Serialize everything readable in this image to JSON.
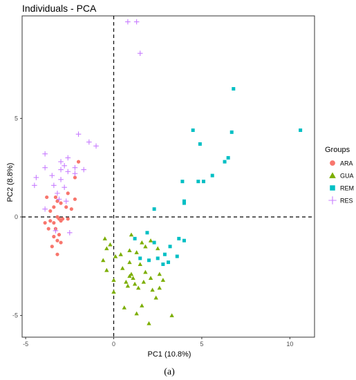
{
  "chart_data": {
    "type": "scatter",
    "title": "Individuals - PCA",
    "xlabel": "PC1 (10.8%)",
    "ylabel": "PC2 (8.8%)",
    "xlim": [
      -5.2,
      11.4
    ],
    "ylim": [
      -6.1,
      10.2
    ],
    "xticks": [
      -5,
      0,
      5,
      10
    ],
    "yticks": [
      -5,
      0,
      5
    ],
    "grid": false,
    "reference_lines": {
      "x": 0,
      "y": 0,
      "style": "dashed"
    },
    "legend": {
      "title": "Groups",
      "position": "right"
    },
    "series": [
      {
        "name": "ARA",
        "color": "#F8766D",
        "shape": "circle",
        "points": [
          [
            -3.1,
            -0.1
          ],
          [
            -3.0,
            -0.2
          ],
          [
            -3.2,
            0.0
          ],
          [
            -2.9,
            -0.1
          ],
          [
            -3.4,
            -0.3
          ],
          [
            -3.6,
            -0.2
          ],
          [
            -3.3,
            -0.6
          ],
          [
            -3.1,
            -0.9
          ],
          [
            -3.4,
            -1.0
          ],
          [
            -3.2,
            -1.2
          ],
          [
            -3.5,
            -1.5
          ],
          [
            -3.2,
            -1.9
          ],
          [
            -3.0,
            -1.3
          ],
          [
            -3.7,
            -0.6
          ],
          [
            -3.9,
            -0.3
          ],
          [
            -3.6,
            0.3
          ],
          [
            -3.4,
            0.5
          ],
          [
            -3.2,
            0.8
          ],
          [
            -3.3,
            1.0
          ],
          [
            -3.0,
            0.7
          ],
          [
            -2.7,
            0.5
          ],
          [
            -2.4,
            0.4
          ],
          [
            -2.2,
            0.9
          ],
          [
            -2.6,
            1.2
          ],
          [
            -3.8,
            1.0
          ],
          [
            -2.2,
            2.0
          ],
          [
            -2.0,
            2.8
          ],
          [
            -2.6,
            -0.1
          ]
        ]
      },
      {
        "name": "GUA",
        "color": "#7CAE00",
        "shape": "triangle",
        "points": [
          [
            1.0,
            -2.9
          ],
          [
            1.1,
            -3.1
          ],
          [
            0.9,
            -3.0
          ],
          [
            1.2,
            -3.4
          ],
          [
            0.8,
            -3.5
          ],
          [
            1.4,
            -3.6
          ],
          [
            0.7,
            -3.3
          ],
          [
            0.5,
            -2.6
          ],
          [
            0.9,
            -2.3
          ],
          [
            1.5,
            -2.4
          ],
          [
            1.8,
            -2.8
          ],
          [
            2.1,
            -3.1
          ],
          [
            1.7,
            -3.3
          ],
          [
            2.2,
            -3.7
          ],
          [
            2.6,
            -3.6
          ],
          [
            2.8,
            -3.2
          ],
          [
            2.4,
            -4.1
          ],
          [
            1.6,
            -4.5
          ],
          [
            2.0,
            -5.4
          ],
          [
            1.3,
            -4.9
          ],
          [
            0.6,
            -4.6
          ],
          [
            0.0,
            -3.8
          ],
          [
            -0.6,
            -2.2
          ],
          [
            -0.4,
            -1.6
          ],
          [
            -0.5,
            -1.1
          ],
          [
            -0.2,
            -1.4
          ],
          [
            0.1,
            -2.0
          ],
          [
            0.4,
            -1.9
          ],
          [
            0.9,
            -1.7
          ],
          [
            1.3,
            -1.8
          ],
          [
            1.8,
            -1.5
          ],
          [
            2.1,
            -1.2
          ],
          [
            2.5,
            -1.6
          ],
          [
            3.3,
            -5.0
          ],
          [
            0.0,
            -3.2
          ],
          [
            1.6,
            -1.3
          ],
          [
            -0.4,
            -2.7
          ],
          [
            1.0,
            -0.9
          ],
          [
            2.6,
            -2.9
          ]
        ]
      },
      {
        "name": "REM",
        "color": "#00BFC4",
        "shape": "square",
        "points": [
          [
            6.8,
            6.5
          ],
          [
            10.6,
            4.4
          ],
          [
            4.5,
            4.4
          ],
          [
            6.7,
            4.3
          ],
          [
            4.9,
            3.7
          ],
          [
            6.5,
            3.0
          ],
          [
            6.3,
            2.8
          ],
          [
            5.6,
            2.1
          ],
          [
            5.1,
            1.8
          ],
          [
            4.8,
            1.8
          ],
          [
            3.9,
            1.8
          ],
          [
            4.0,
            0.8
          ],
          [
            4.0,
            0.7
          ],
          [
            2.3,
            0.4
          ],
          [
            1.9,
            -0.8
          ],
          [
            1.2,
            -1.1
          ],
          [
            1.5,
            -2.1
          ],
          [
            2.0,
            -2.2
          ],
          [
            2.3,
            -1.3
          ],
          [
            2.5,
            -2.1
          ],
          [
            2.9,
            -1.9
          ],
          [
            3.2,
            -1.5
          ],
          [
            3.7,
            -1.1
          ],
          [
            4.0,
            -1.2
          ],
          [
            3.6,
            -2.0
          ],
          [
            2.8,
            -2.4
          ],
          [
            3.1,
            -2.3
          ]
        ]
      },
      {
        "name": "RES",
        "color": "#C77CFF",
        "shape": "plus",
        "points": [
          [
            0.8,
            9.9
          ],
          [
            1.3,
            9.9
          ],
          [
            1.5,
            8.3
          ],
          [
            -1.4,
            3.8
          ],
          [
            -2.0,
            4.2
          ],
          [
            -1.0,
            3.6
          ],
          [
            -3.9,
            3.2
          ],
          [
            -2.6,
            3.0
          ],
          [
            -3.0,
            2.8
          ],
          [
            -2.2,
            2.5
          ],
          [
            -1.7,
            2.4
          ],
          [
            -3.9,
            2.5
          ],
          [
            -4.4,
            2.0
          ],
          [
            -3.0,
            2.4
          ],
          [
            -2.6,
            2.3
          ],
          [
            -4.5,
            1.6
          ],
          [
            -3.4,
            1.6
          ],
          [
            -3.0,
            1.9
          ],
          [
            -2.8,
            1.5
          ],
          [
            -3.1,
            0.9
          ],
          [
            -2.7,
            0.8
          ],
          [
            -3.9,
            0.4
          ],
          [
            -2.5,
            -0.8
          ],
          [
            -3.3,
            -0.7
          ],
          [
            -3.2,
            1.2
          ],
          [
            -2.8,
            2.6
          ],
          [
            -3.5,
            2.1
          ],
          [
            -2.2,
            2.2
          ]
        ]
      }
    ]
  },
  "caption": "(a)"
}
